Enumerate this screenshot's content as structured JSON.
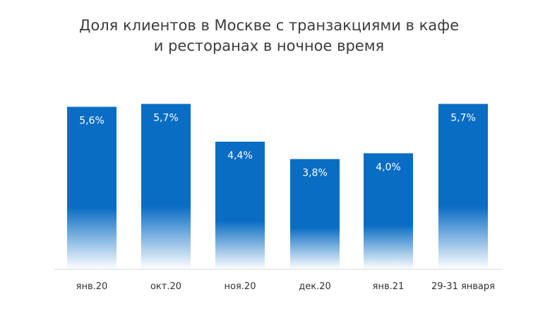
{
  "chart_data": {
    "type": "bar",
    "title": [
      "Доля клиентов в Москве с транзакциями в кафе",
      "и ресторанах в ночное время"
    ],
    "categories": [
      "янв.20",
      "окт.20",
      "ноя.20",
      "дек.20",
      "янв.21",
      "29-31 января"
    ],
    "values": [
      5.6,
      5.7,
      4.4,
      3.8,
      4.0,
      5.7
    ],
    "data_labels": [
      "5,6%",
      "5,7%",
      "4,4%",
      "3,8%",
      "4,0%",
      "5,7%"
    ],
    "xlabel": "",
    "ylabel": "",
    "ylim": [
      0,
      6.0
    ],
    "grid": false,
    "legend": "none",
    "colors": {
      "bar": "#0a6dc4",
      "axis": "#d9d9d9",
      "title": "#3c3c3c",
      "bar_label": "#ffffff",
      "tick": "#333333"
    }
  }
}
